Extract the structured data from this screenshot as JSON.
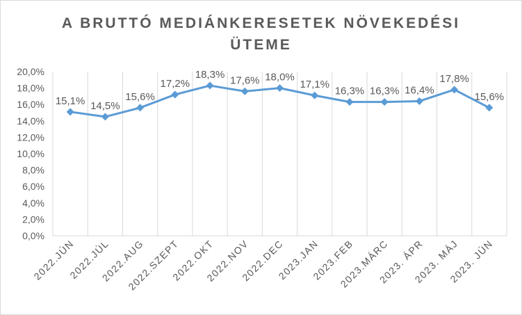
{
  "chart_data": {
    "type": "line",
    "title_line1": "A BRUTTÓ MEDIÁNKERESETEK NÖVEKEDÉSI",
    "title_line2": "ÜTEME",
    "categories": [
      "2022.JÚN",
      "2022.JÚL",
      "2022.AUG",
      "2022.SZEPT",
      "2022.OKT",
      "2022.NOV",
      "2022.DEC",
      "2023.JAN",
      "2023.FEB",
      "2023.MÁRC",
      "2023. ÁPR",
      "2023. MÁJ",
      "2023. JÚN"
    ],
    "values": [
      15.1,
      14.5,
      15.6,
      17.2,
      18.3,
      17.6,
      18.0,
      17.1,
      16.3,
      16.3,
      16.4,
      17.8,
      15.6
    ],
    "data_labels": [
      "15,1%",
      "14,5%",
      "15,6%",
      "17,2%",
      "18,3%",
      "17,6%",
      "18,0%",
      "17,1%",
      "16,3%",
      "16,3%",
      "16,4%",
      "17,8%",
      "15,6%"
    ],
    "ylim": [
      0,
      20
    ],
    "yticks": [
      "0,0%",
      "2,0%",
      "4,0%",
      "6,0%",
      "8,0%",
      "10,0%",
      "12,0%",
      "14,0%",
      "16,0%",
      "18,0%",
      "20,0%"
    ],
    "grid": "vertical",
    "line_color": "#5b9bd5",
    "grid_color": "#d9d9d9",
    "text_color": "#595959"
  }
}
